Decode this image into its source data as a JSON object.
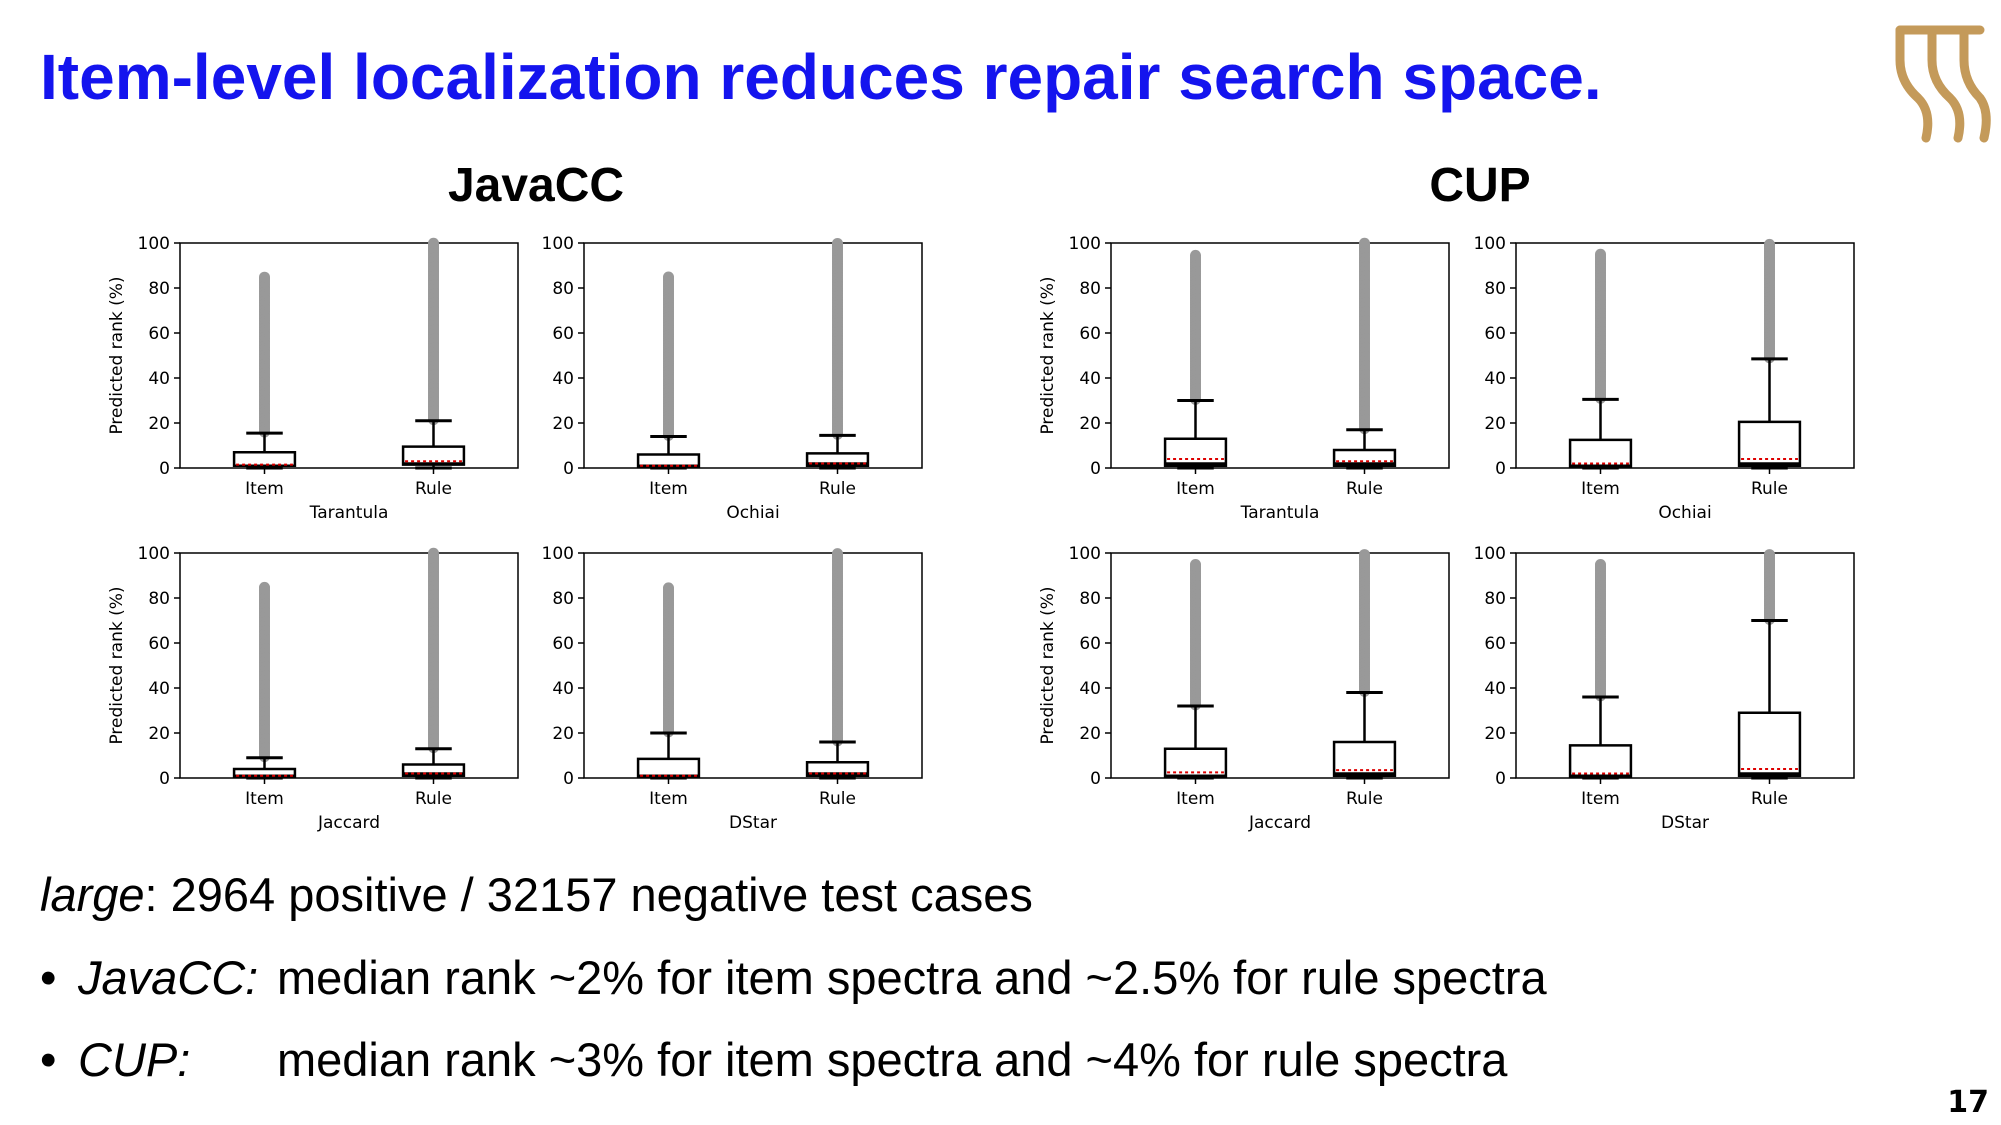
{
  "slide": {
    "title": "Item-level localization reduces repair search space.",
    "page_number": "17",
    "note": {
      "italic": "large",
      "rest": ": 2964 positive / 32157 negative test cases"
    },
    "bullets": [
      {
        "dot": "•",
        "label": "JavaCC:",
        "text": "median rank ~2% for item spectra and ~2.5% for rule spectra"
      },
      {
        "dot": "•",
        "label": "CUP:",
        "text": "median rank ~3% for item spectra and ~4% for rule spectra"
      }
    ],
    "logo": {
      "color": "#c49a5a"
    }
  },
  "colors": {
    "title": "#1414ee",
    "box": "#000000",
    "outliers": "#999999",
    "mean": "#dd0000"
  },
  "chart_data": [
    {
      "type": "box",
      "group": "JavaCC",
      "xlabel": "Tarantula",
      "ylabel": "Predicted rank (%)",
      "ylim": [
        0,
        100
      ],
      "yticks": [
        0,
        20,
        40,
        60,
        80,
        100
      ],
      "categories": [
        "Item",
        "Rule"
      ],
      "boxes": [
        {
          "q1": 1,
          "median": 1,
          "q3": 7,
          "whisker_low": 0,
          "whisker_high": 15.5,
          "mean": 1.5,
          "outliers_from": 16,
          "outliers_to": 85
        },
        {
          "q1": 1.5,
          "median": 2,
          "q3": 9.5,
          "whisker_low": 0,
          "whisker_high": 21,
          "mean": 3,
          "outliers_from": 21.5,
          "outliers_to": 100
        }
      ]
    },
    {
      "type": "box",
      "group": "JavaCC",
      "xlabel": "Ochiai",
      "ylabel": "",
      "ylim": [
        0,
        100
      ],
      "yticks": [
        0,
        20,
        40,
        60,
        80,
        100
      ],
      "categories": [
        "Item",
        "Rule"
      ],
      "boxes": [
        {
          "q1": 0.5,
          "median": 1,
          "q3": 6,
          "whisker_low": 0,
          "whisker_high": 14,
          "mean": 1,
          "outliers_from": 14.5,
          "outliers_to": 85
        },
        {
          "q1": 1,
          "median": 2,
          "q3": 6.5,
          "whisker_low": 0,
          "whisker_high": 14.5,
          "mean": 2,
          "outliers_from": 15,
          "outliers_to": 100
        }
      ]
    },
    {
      "type": "box",
      "group": "JavaCC",
      "xlabel": "Jaccard",
      "ylabel": "Predicted rank (%)",
      "ylim": [
        0,
        100
      ],
      "yticks": [
        0,
        20,
        40,
        60,
        80,
        100
      ],
      "categories": [
        "Item",
        "Rule"
      ],
      "boxes": [
        {
          "q1": 0.5,
          "median": 1,
          "q3": 4,
          "whisker_low": 0,
          "whisker_high": 9,
          "mean": 1,
          "outliers_from": 9.5,
          "outliers_to": 85
        },
        {
          "q1": 1,
          "median": 2,
          "q3": 6,
          "whisker_low": 0,
          "whisker_high": 13,
          "mean": 2,
          "outliers_from": 13.5,
          "outliers_to": 100
        }
      ]
    },
    {
      "type": "box",
      "group": "JavaCC",
      "xlabel": "DStar",
      "ylabel": "",
      "ylim": [
        0,
        100
      ],
      "yticks": [
        0,
        20,
        40,
        60,
        80,
        100
      ],
      "categories": [
        "Item",
        "Rule"
      ],
      "boxes": [
        {
          "q1": 0.5,
          "median": 1,
          "q3": 8.5,
          "whisker_low": 0,
          "whisker_high": 20,
          "mean": 1,
          "outliers_from": 20.5,
          "outliers_to": 85
        },
        {
          "q1": 1,
          "median": 2,
          "q3": 7,
          "whisker_low": 0,
          "whisker_high": 16,
          "mean": 2,
          "outliers_from": 16.5,
          "outliers_to": 100
        }
      ]
    },
    {
      "type": "box",
      "group": "CUP",
      "xlabel": "Tarantula",
      "ylabel": "Predicted rank (%)",
      "ylim": [
        0,
        100
      ],
      "yticks": [
        0,
        20,
        40,
        60,
        80,
        100
      ],
      "categories": [
        "Item",
        "Rule"
      ],
      "boxes": [
        {
          "q1": 1,
          "median": 2,
          "q3": 13,
          "whisker_low": 0,
          "whisker_high": 30,
          "mean": 4,
          "outliers_from": 30.5,
          "outliers_to": 95
        },
        {
          "q1": 1,
          "median": 2,
          "q3": 8,
          "whisker_low": 0,
          "whisker_high": 17,
          "mean": 3,
          "outliers_from": 17.5,
          "outliers_to": 100
        }
      ]
    },
    {
      "type": "box",
      "group": "CUP",
      "xlabel": "Ochiai",
      "ylabel": "",
      "ylim": [
        0,
        100
      ],
      "yticks": [
        0,
        20,
        40,
        60,
        80,
        100
      ],
      "categories": [
        "Item",
        "Rule"
      ],
      "boxes": [
        {
          "q1": 0.5,
          "median": 1,
          "q3": 12.5,
          "whisker_low": 0,
          "whisker_high": 30.5,
          "mean": 2,
          "outliers_from": 31,
          "outliers_to": 95
        },
        {
          "q1": 1,
          "median": 2,
          "q3": 20.5,
          "whisker_low": 0,
          "whisker_high": 48.5,
          "mean": 4,
          "outliers_from": 49,
          "outliers_to": 100
        }
      ]
    },
    {
      "type": "box",
      "group": "CUP",
      "xlabel": "Jaccard",
      "ylabel": "Predicted rank (%)",
      "ylim": [
        0,
        100
      ],
      "yticks": [
        0,
        20,
        40,
        60,
        80,
        100
      ],
      "categories": [
        "Item",
        "Rule"
      ],
      "boxes": [
        {
          "q1": 0.5,
          "median": 1,
          "q3": 13,
          "whisker_low": 0,
          "whisker_high": 32,
          "mean": 2.5,
          "outliers_from": 32.5,
          "outliers_to": 95
        },
        {
          "q1": 1,
          "median": 2,
          "q3": 16,
          "whisker_low": 0,
          "whisker_high": 38,
          "mean": 3.5,
          "outliers_from": 38.5,
          "outliers_to": 100
        }
      ]
    },
    {
      "type": "box",
      "group": "CUP",
      "xlabel": "DStar",
      "ylabel": "",
      "ylim": [
        0,
        100
      ],
      "yticks": [
        0,
        20,
        40,
        60,
        80,
        100
      ],
      "categories": [
        "Item",
        "Rule"
      ],
      "boxes": [
        {
          "q1": 0.5,
          "median": 1,
          "q3": 14.5,
          "whisker_low": 0,
          "whisker_high": 36,
          "mean": 2,
          "outliers_from": 36.5,
          "outliers_to": 95
        },
        {
          "q1": 1,
          "median": 2,
          "q3": 29,
          "whisker_low": 0,
          "whisker_high": 70,
          "mean": 4,
          "outliers_from": 70.5,
          "outliers_to": 100
        }
      ]
    }
  ]
}
